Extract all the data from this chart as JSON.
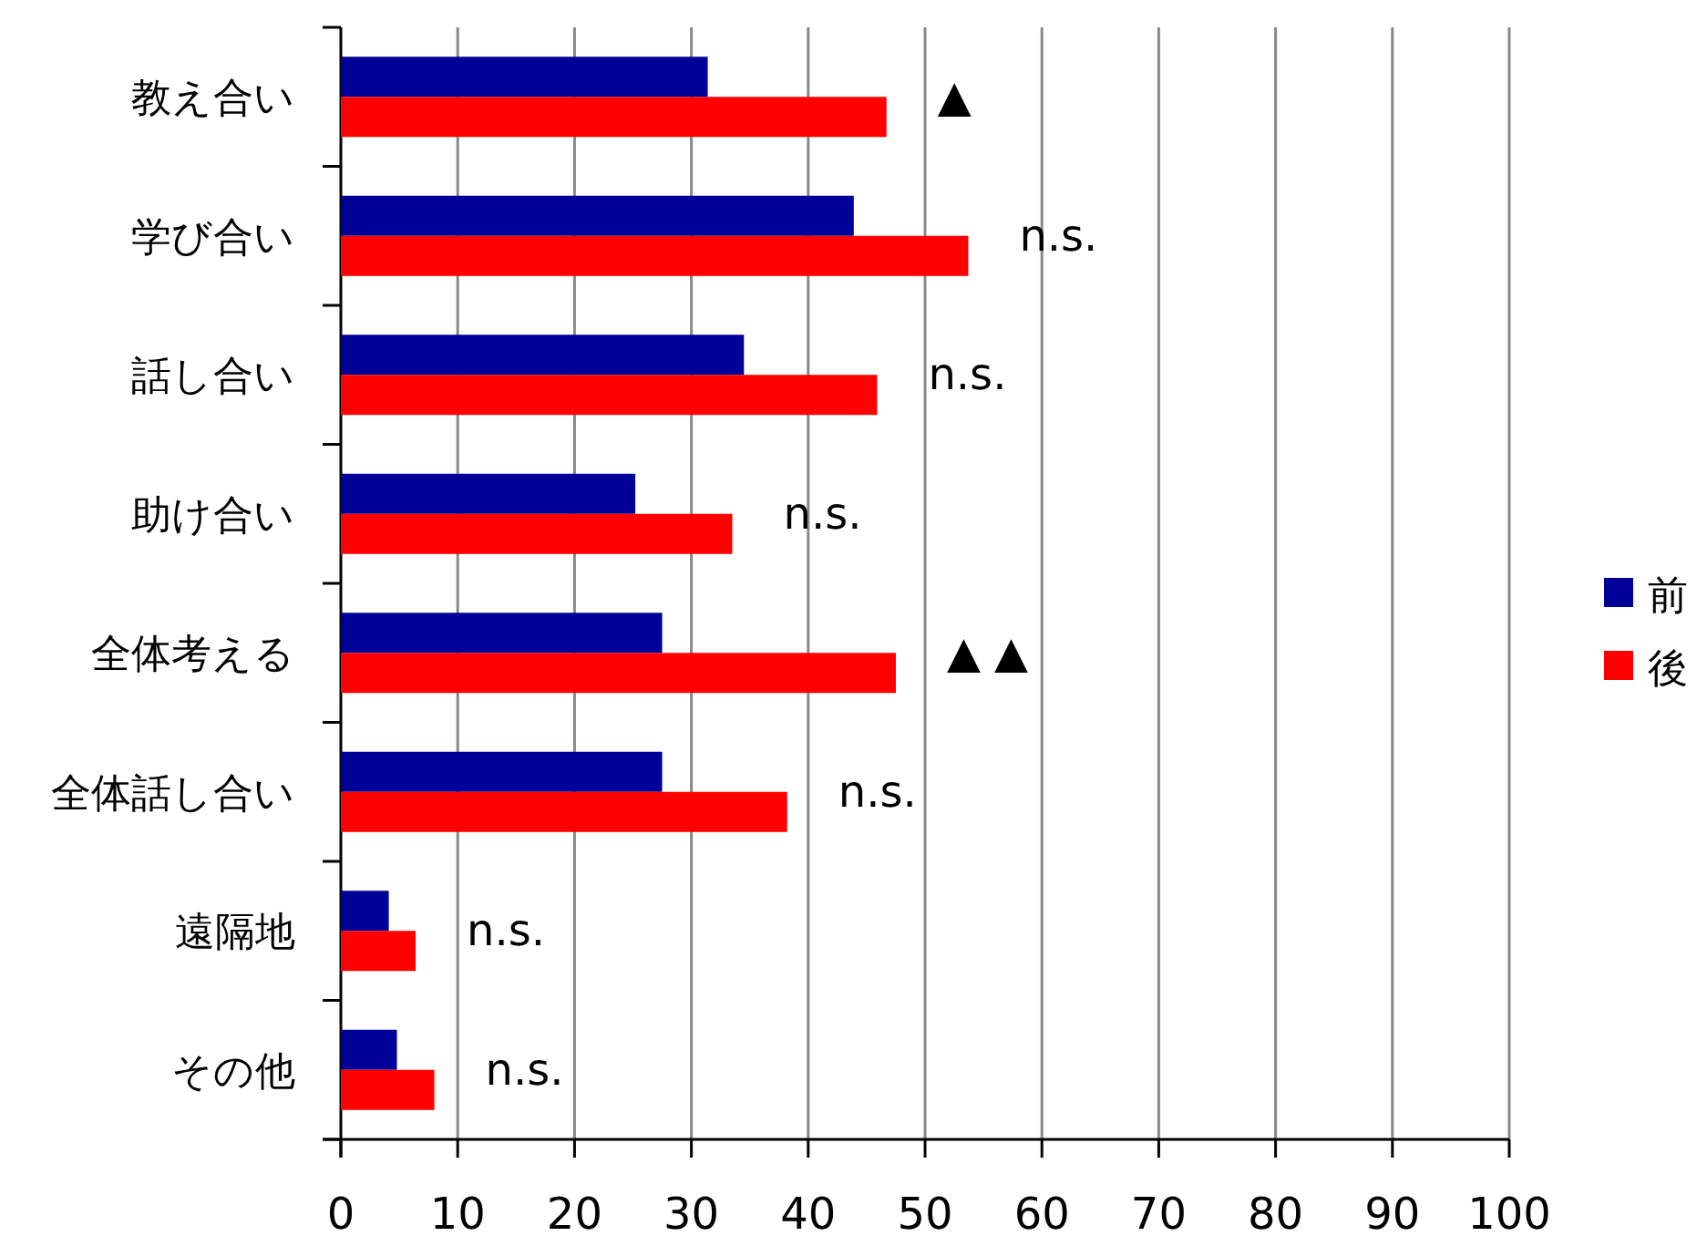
{
  "chart_data": {
    "type": "bar",
    "orientation": "horizontal",
    "categories": [
      "教え合い",
      "学び合い",
      "話し合い",
      "助け合い",
      "全体考える",
      "全体話し合い",
      "遠隔地",
      "その他"
    ],
    "series": [
      {
        "name": "前",
        "color": "#000099",
        "values": [
          31.4,
          43.9,
          34.5,
          25.2,
          27.5,
          27.5,
          4.1,
          4.8
        ]
      },
      {
        "name": "後",
        "color": "#ff0000",
        "values": [
          46.7,
          53.7,
          45.9,
          33.5,
          47.5,
          38.2,
          6.4,
          8.0
        ]
      }
    ],
    "xlim": [
      0,
      100
    ],
    "xticks": [
      0,
      10,
      20,
      30,
      40,
      50,
      60,
      70,
      80,
      90,
      100
    ],
    "grid": "x",
    "legend": "right",
    "annotations": [
      "▲",
      "n.s.",
      "n.s.",
      "n.s.",
      "▲ ▲",
      "n.s.",
      "n.s.",
      "n.s."
    ]
  }
}
